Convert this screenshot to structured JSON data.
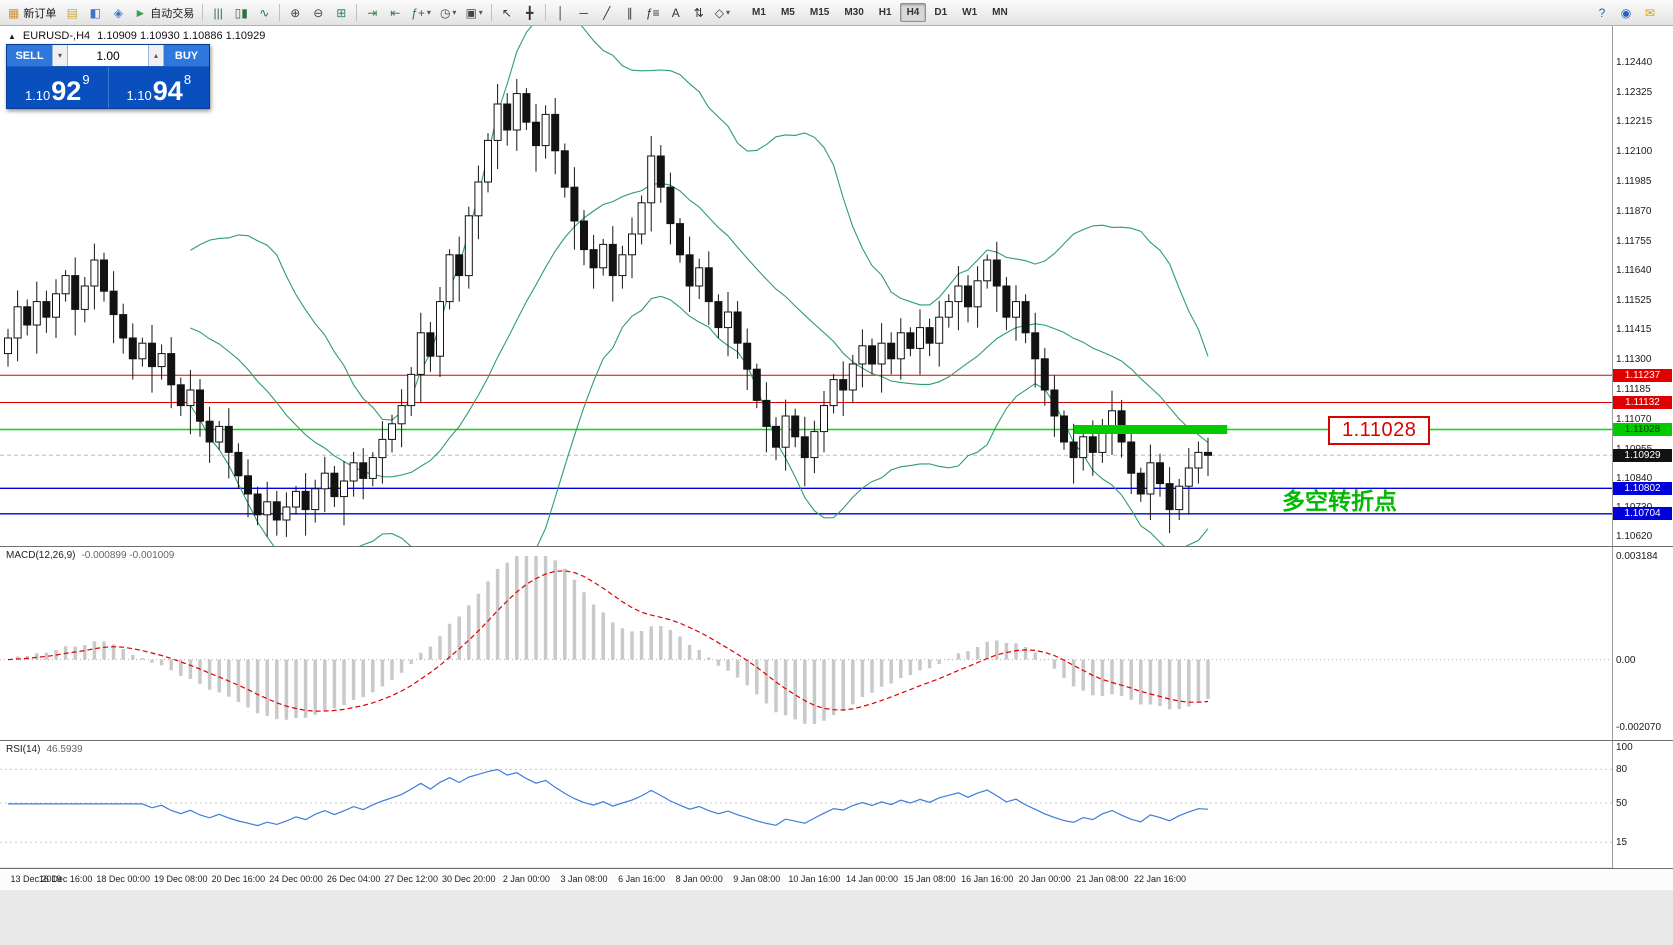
{
  "toolbar": {
    "items": [
      {
        "type": "button",
        "name": "new-order-button",
        "glyph": "▦",
        "glyph_color": "#cf8f2e",
        "label": "新订单"
      },
      {
        "type": "button",
        "name": "market-watch-button",
        "glyph": "▤",
        "glyph_color": "#caa53d"
      },
      {
        "type": "button",
        "name": "navigator-button",
        "glyph": "◧",
        "glyph_color": "#3b74c9"
      },
      {
        "type": "button",
        "name": "terminal-button",
        "glyph": "◈",
        "glyph_color": "#3b74c9"
      },
      {
        "type": "button",
        "name": "autotrading-button",
        "glyph": "►",
        "glyph_color": "#2da44e",
        "label": "自动交易"
      },
      {
        "type": "sep"
      },
      {
        "type": "button",
        "name": "bar-chart-button",
        "glyph": "|||",
        "glyph_color": "#2f6f3e"
      },
      {
        "type": "button",
        "name": "candlestick-chart-button",
        "glyph": "▯▮",
        "glyph_color": "#2f6f3e"
      },
      {
        "type": "button",
        "name": "line-chart-button",
        "glyph": "∿",
        "glyph_color": "#2f6f3e"
      },
      {
        "type": "sep"
      },
      {
        "type": "button",
        "name": "zoom-in-button",
        "glyph": "⊕",
        "glyph_color": "#444444"
      },
      {
        "type": "button",
        "name": "zoom-out-button",
        "glyph": "⊖",
        "glyph_color": "#444444"
      },
      {
        "type": "button",
        "name": "tile-windows-button",
        "glyph": "⊞",
        "glyph_color": "#2f855a"
      },
      {
        "type": "sep"
      },
      {
        "type": "button",
        "name": "auto-scroll-button",
        "glyph": "⇥",
        "glyph_color": "#3a7d44"
      },
      {
        "type": "button",
        "name": "chart-shift-button",
        "glyph": "⇤",
        "glyph_color": "#3a7d44"
      },
      {
        "type": "button",
        "name": "indicators-button",
        "glyph": "ƒ+",
        "glyph_color": "#2f6f3e",
        "dropdown": true
      },
      {
        "type": "button",
        "name": "periods-button",
        "glyph": "◷",
        "glyph_color": "#444444",
        "dropdown": true
      },
      {
        "type": "button",
        "name": "templates-button",
        "glyph": "▣",
        "glyph_color": "#444444",
        "dropdown": true
      },
      {
        "type": "sep"
      },
      {
        "type": "button",
        "name": "cursor-button",
        "glyph": "↖",
        "glyph_color": "#333333"
      },
      {
        "type": "button",
        "name": "crosshair-button",
        "glyph": "╋",
        "glyph_color": "#333333"
      },
      {
        "type": "sep"
      },
      {
        "type": "button",
        "name": "vertical-line-button",
        "glyph": "│",
        "glyph_color": "#333333"
      },
      {
        "type": "button",
        "name": "horizontal-line-button",
        "glyph": "─",
        "glyph_color": "#333333"
      },
      {
        "type": "button",
        "name": "trendline-button",
        "glyph": "╱",
        "glyph_color": "#333333"
      },
      {
        "type": "button",
        "name": "channel-button",
        "glyph": "∥",
        "glyph_color": "#333333"
      },
      {
        "type": "button",
        "name": "fibonacci-button",
        "glyph": "ƒ≡",
        "glyph_color": "#333333"
      },
      {
        "type": "button",
        "name": "text-tool-button",
        "glyph": "A",
        "glyph_color": "#333333"
      },
      {
        "type": "button",
        "name": "arrows-tool-button",
        "glyph": "⇅",
        "glyph_color": "#333333"
      },
      {
        "type": "button",
        "name": "shapes-button",
        "glyph": "◇",
        "glyph_color": "#333333",
        "dropdown": true
      }
    ],
    "timeframes": {
      "options": [
        "M1",
        "M5",
        "M15",
        "M30",
        "H1",
        "H4",
        "D1",
        "W1",
        "MN"
      ],
      "active": "H4"
    },
    "right_items": [
      {
        "name": "help-search-button",
        "glyph": "?",
        "glyph_color": "#2264b8"
      },
      {
        "name": "notifications-button",
        "glyph": "◉",
        "glyph_color": "#2264b8"
      },
      {
        "name": "chat-button",
        "glyph": "✉",
        "glyph_color": "#d8a400"
      }
    ]
  },
  "chart": {
    "collapse_glyph": "▲",
    "title_symbol": "EURUSD-,H4",
    "title_quotes": "1.10909 1.10930 1.10886 1.10929",
    "one_click": {
      "sell_label": "SELL",
      "buy_label": "BUY",
      "volume": "1.00",
      "spin_down_glyph": "▾",
      "spin_up_glyph": "▴",
      "sell_price": {
        "base": "1.10",
        "big": "92",
        "sup": "9"
      },
      "buy_price": {
        "base": "1.10",
        "big": "94",
        "sup": "8"
      }
    },
    "annotations": {
      "price_label": "1.11028",
      "note": "多空转折点",
      "note_color": "#00ba00",
      "price_label_color": "#dd0000"
    }
  },
  "chart_data": {
    "type": "candlestick",
    "symbol": "EURUSD-",
    "timeframe": "H4",
    "last_ohlc": {
      "open": "1.10909",
      "high": "1.10930",
      "low": "1.10886",
      "close": "1.10929"
    },
    "price_range": [
      1.1058,
      1.1258
    ],
    "current_price": 1.10929,
    "closes": [
      1.1138,
      1.115,
      1.1143,
      1.1152,
      1.1146,
      1.1155,
      1.1162,
      1.1149,
      1.1158,
      1.1168,
      1.1156,
      1.1147,
      1.1138,
      1.113,
      1.1136,
      1.1127,
      1.1132,
      1.112,
      1.1112,
      1.1118,
      1.1106,
      1.1098,
      1.1104,
      1.1094,
      1.1085,
      1.1078,
      1.107,
      1.1075,
      1.1068,
      1.1073,
      1.1079,
      1.1072,
      1.108,
      1.1086,
      1.1077,
      1.1083,
      1.109,
      1.1084,
      1.1092,
      1.1099,
      1.1105,
      1.1112,
      1.1124,
      1.114,
      1.1131,
      1.1152,
      1.117,
      1.1162,
      1.1185,
      1.1198,
      1.1214,
      1.1228,
      1.1218,
      1.1232,
      1.1221,
      1.1212,
      1.1224,
      1.121,
      1.1196,
      1.1183,
      1.1172,
      1.1165,
      1.1174,
      1.1162,
      1.117,
      1.1178,
      1.119,
      1.1208,
      1.1196,
      1.1182,
      1.117,
      1.1158,
      1.1165,
      1.1152,
      1.1142,
      1.1148,
      1.1136,
      1.1126,
      1.1114,
      1.1104,
      1.1096,
      1.1108,
      1.11,
      1.1092,
      1.1102,
      1.1112,
      1.1122,
      1.1118,
      1.1128,
      1.1135,
      1.1128,
      1.1136,
      1.113,
      1.114,
      1.1134,
      1.1142,
      1.1136,
      1.1146,
      1.1152,
      1.1158,
      1.115,
      1.116,
      1.1168,
      1.1158,
      1.1146,
      1.1152,
      1.114,
      1.113,
      1.1118,
      1.1108,
      1.1098,
      1.1092,
      1.11,
      1.1094,
      1.1104,
      1.111,
      1.1098,
      1.1086,
      1.1078,
      1.109,
      1.1082,
      1.1072,
      1.1081,
      1.1088,
      1.1094,
      1.10929
    ],
    "price_axis": [
      1.1244,
      1.12325,
      1.12215,
      1.121,
      1.11985,
      1.1187,
      1.11755,
      1.1164,
      1.11525,
      1.11415,
      1.113,
      1.11185,
      1.1107,
      1.10955,
      1.1084,
      1.1073,
      1.1062
    ],
    "price_tags": [
      {
        "name": "resistance-price-tag-1",
        "value": 1.11237,
        "bg": "#e00000",
        "fg": "#ffffff"
      },
      {
        "name": "resistance-price-tag-2",
        "value": 1.11132,
        "bg": "#e00000",
        "fg": "#ffffff"
      },
      {
        "name": "pivot-price-tag",
        "value": 1.11028,
        "bg": "#00cc00",
        "fg": "#003300"
      },
      {
        "name": "current-price-tag",
        "value": 1.10929,
        "bg": "#111111",
        "fg": "#ffffff"
      },
      {
        "name": "support-price-tag-1",
        "value": 1.10802,
        "bg": "#0000dd",
        "fg": "#ffffff"
      },
      {
        "name": "support-price-tag-2",
        "value": 1.10704,
        "bg": "#0000dd",
        "fg": "#ffffff"
      }
    ],
    "hlines": [
      {
        "value": 1.11237,
        "color": "#e00000",
        "width": 1
      },
      {
        "value": 1.11132,
        "color": "#e00000",
        "width": 1
      },
      {
        "value": 1.11028,
        "color": "#00dd00",
        "width": 1.4
      },
      {
        "value": 1.10802,
        "color": "#0000dd",
        "width": 1.4
      },
      {
        "value": 1.10704,
        "color": "#0000dd",
        "width": 1.4
      }
    ],
    "highlight_rect": {
      "value": 1.11028,
      "from_index": 111,
      "to_index": 127,
      "color": "#00cc00"
    },
    "time_labels": [
      "13 Dec 2019",
      "16 Dec 16:00",
      "18 Dec 00:00",
      "19 Dec 08:00",
      "20 Dec 16:00",
      "24 Dec 00:00",
      "26 Dec 04:00",
      "27 Dec 12:00",
      "30 Dec 20:00",
      "2 Jan 00:00",
      "3 Jan 08:00",
      "6 Jan 16:00",
      "8 Jan 00:00",
      "9 Jan 08:00",
      "10 Jan 16:00",
      "14 Jan 00:00",
      "15 Jan 08:00",
      "16 Jan 16:00",
      "20 Jan 00:00",
      "21 Jan 08:00",
      "22 Jan 16:00"
    ],
    "indicators": {
      "bollinger": {
        "period": 20,
        "deviation": 2,
        "color": "#2e9e68"
      },
      "macd": {
        "label": "MACD(12,26,9)",
        "value_text": "-0.000899 -0.001009",
        "hist_color": "#c9c9c9",
        "signal_color": "#e00000",
        "axis": [
          {
            "text": "0.003184",
            "value": 0.003184
          },
          {
            "text": "0.00",
            "value": 0
          },
          {
            "text": "-0.002070",
            "value": -0.00207
          }
        ]
      },
      "rsi": {
        "label": "RSI(14)",
        "value_text": "46.5939",
        "color": "#3e7bdb",
        "levels": [
          80,
          50,
          15
        ],
        "axis": [
          {
            "text": "100",
            "value": 100
          },
          {
            "text": "80",
            "value": 80
          },
          {
            "text": "50",
            "value": 50
          },
          {
            "text": "15",
            "value": 15
          }
        ]
      }
    }
  }
}
